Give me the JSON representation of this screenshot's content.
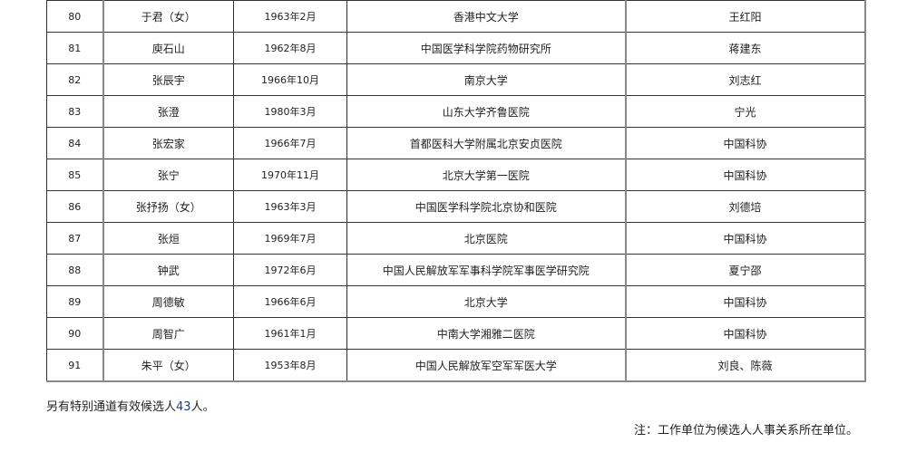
{
  "table": {
    "rows": [
      [
        "80",
        "于君（女）",
        "1963年2月",
        "香港中文大学",
        "王红阳"
      ],
      [
        "81",
        "庾石山",
        "1962年8月",
        "中国医学科学院药物研究所",
        "蒋建东"
      ],
      [
        "82",
        "张辰宇",
        "1966年10月",
        "南京大学",
        "刘志红"
      ],
      [
        "83",
        "张澄",
        "1980年3月",
        "山东大学齐鲁医院",
        "宁光"
      ],
      [
        "84",
        "张宏家",
        "1966年7月",
        "首都医科大学附属北京安贞医院",
        "中国科协"
      ],
      [
        "85",
        "张宁",
        "1970年11月",
        "北京大学第一医院",
        "中国科协"
      ],
      [
        "86",
        "张抒扬（女）",
        "1963年3月",
        "中国医学科学院北京协和医院",
        "刘德培"
      ],
      [
        "87",
        "张烜",
        "1969年7月",
        "北京医院",
        "中国科协"
      ],
      [
        "88",
        "钟武",
        "1972年6月",
        "中国人民解放军军事科学院军事医学研究院",
        "夏宁邵"
      ],
      [
        "89",
        "周德敏",
        "1966年6月",
        "北京大学",
        "中国科协"
      ],
      [
        "90",
        "周智广",
        "1961年1月",
        "中南大学湘雅二医院",
        "中国科协"
      ],
      [
        "91",
        "朱平（女）",
        "1953年8月",
        "中国人民解放军空军军医大学",
        "刘良、陈薇"
      ]
    ]
  },
  "footer": {
    "special_prefix": "另有特别通道有效候选人",
    "special_count": "43",
    "special_suffix": "人。",
    "note": "注：工作单位为候选人人事关系所在单位。"
  }
}
